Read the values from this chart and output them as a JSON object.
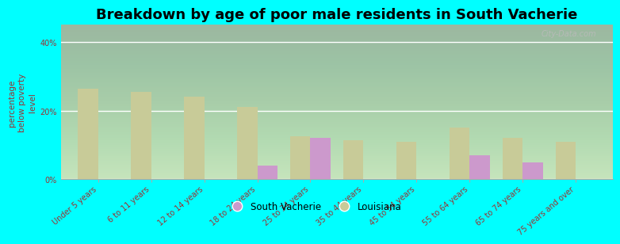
{
  "categories": [
    "Under 5 years",
    "6 to 11 years",
    "12 to 14 years",
    "18 to 24 years",
    "25 to 34 years",
    "35 to 44 years",
    "45 to 54 years",
    "55 to 64 years",
    "65 to 74 years",
    "75 years and over"
  ],
  "south_vacherie": [
    0,
    0,
    0,
    4.0,
    12.0,
    0,
    0,
    7.0,
    5.0,
    0
  ],
  "louisiana": [
    26.5,
    25.5,
    24.0,
    21.0,
    12.5,
    11.5,
    11.0,
    15.0,
    12.0,
    11.0
  ],
  "sv_color": "#cc99cc",
  "la_color": "#c8cb98",
  "background_color": "#00ffff",
  "title": "Breakdown by age of poor male residents in South Vacherie",
  "ylabel": "percentage\nbelow poverty\nlevel",
  "ylim": [
    0,
    45
  ],
  "ytick_labels": [
    "0%",
    "20%",
    "40%"
  ],
  "ytick_vals": [
    0,
    20,
    40
  ],
  "bar_width": 0.38,
  "title_fontsize": 13,
  "axis_label_fontsize": 7.5,
  "tick_fontsize": 7,
  "legend_labels": [
    "South Vacherie",
    "Louisiana"
  ],
  "watermark": "City-Data.com"
}
